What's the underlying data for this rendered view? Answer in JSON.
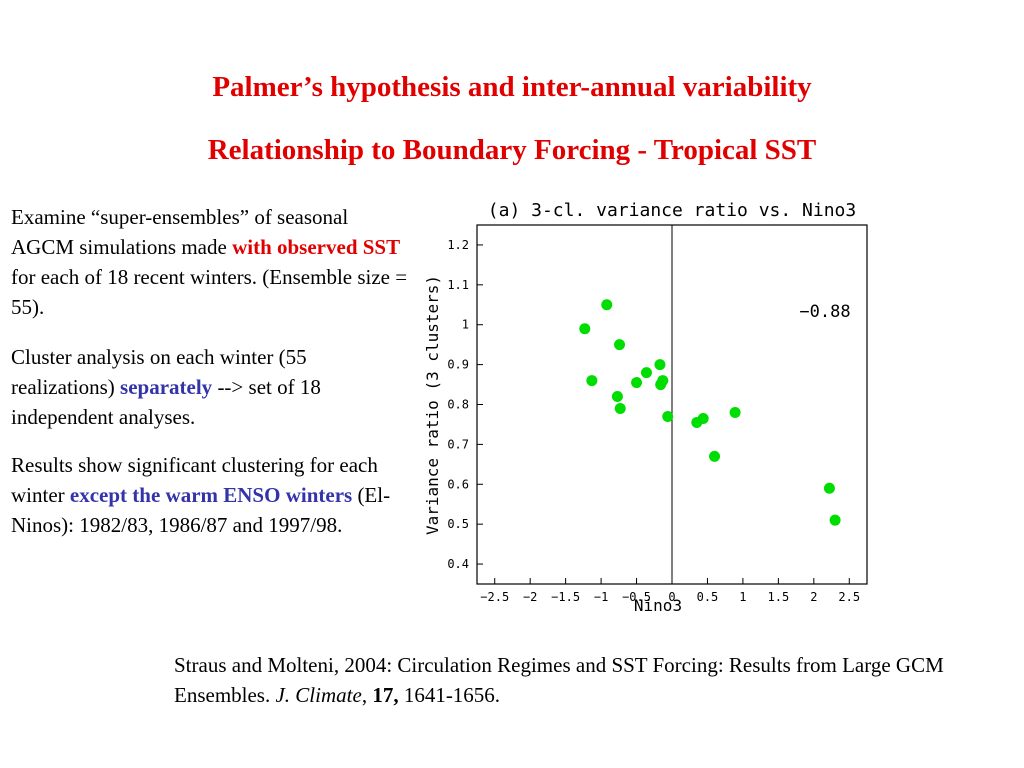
{
  "slide": {
    "title_line1": "Palmer’s hypothesis and inter-annual variability",
    "title_line2": "Relationship to Boundary Forcing - Tropical SST",
    "para1": {
      "pre": "Examine “super-ensembles” of seasonal AGCM simulations made ",
      "highlight": "with observed SST",
      "post": " for each of 18 recent winters. (Ensemble size = 55)."
    },
    "para2": {
      "pre": "Cluster analysis on each winter (55 realizations) ",
      "highlight": "separately",
      "post": " --> set of 18 independent analyses."
    },
    "para3": {
      "pre": "Results show significant clustering for each winter ",
      "highlight": "except the warm ENSO winters",
      "post": " (El-Ninos): 1982/83, 1986/87 and 1997/98."
    },
    "citation": {
      "pre": "Straus and Molteni, 2004: Circulation Regimes and SST Forcing: Results from Large GCM Ensembles. ",
      "journal": "J. Climate",
      "sep": ", ",
      "volume": "17,",
      "pages": " 1641-1656."
    },
    "colors": {
      "title": "#e00000",
      "highlight_red": "#e00000",
      "highlight_blue": "#3333aa",
      "points": "#00dd00"
    }
  },
  "chart_data": {
    "type": "scatter",
    "title": "(a) 3-cl. variance ratio vs. Nino3",
    "xlabel": "Nino3",
    "ylabel": "Variance ratio (3 clusters)",
    "xlim": [
      -2.75,
      2.75
    ],
    "ylim": [
      0.35,
      1.25
    ],
    "xticks": [
      "-2.5",
      "-2",
      "-1.5",
      "-1",
      "-0.5",
      "0",
      "0.5",
      "1",
      "1.5",
      "2",
      "2.5"
    ],
    "yticks": [
      "0.4",
      "0.5",
      "0.6",
      "0.7",
      "0.8",
      "0.9",
      "1",
      "1.1",
      "1.2"
    ],
    "annotation": "-0.88",
    "grid": false,
    "points": [
      {
        "x": -1.23,
        "y": 0.99
      },
      {
        "x": -0.92,
        "y": 1.05
      },
      {
        "x": -1.13,
        "y": 0.86
      },
      {
        "x": -0.74,
        "y": 0.95
      },
      {
        "x": -0.77,
        "y": 0.82
      },
      {
        "x": -0.73,
        "y": 0.79
      },
      {
        "x": -0.5,
        "y": 0.855
      },
      {
        "x": -0.36,
        "y": 0.88
      },
      {
        "x": -0.17,
        "y": 0.9
      },
      {
        "x": -0.16,
        "y": 0.85
      },
      {
        "x": -0.13,
        "y": 0.86
      },
      {
        "x": -0.06,
        "y": 0.77
      },
      {
        "x": 0.35,
        "y": 0.755
      },
      {
        "x": 0.44,
        "y": 0.765
      },
      {
        "x": 0.6,
        "y": 0.67
      },
      {
        "x": 0.89,
        "y": 0.78
      },
      {
        "x": 2.22,
        "y": 0.59
      },
      {
        "x": 2.3,
        "y": 0.51
      }
    ]
  }
}
